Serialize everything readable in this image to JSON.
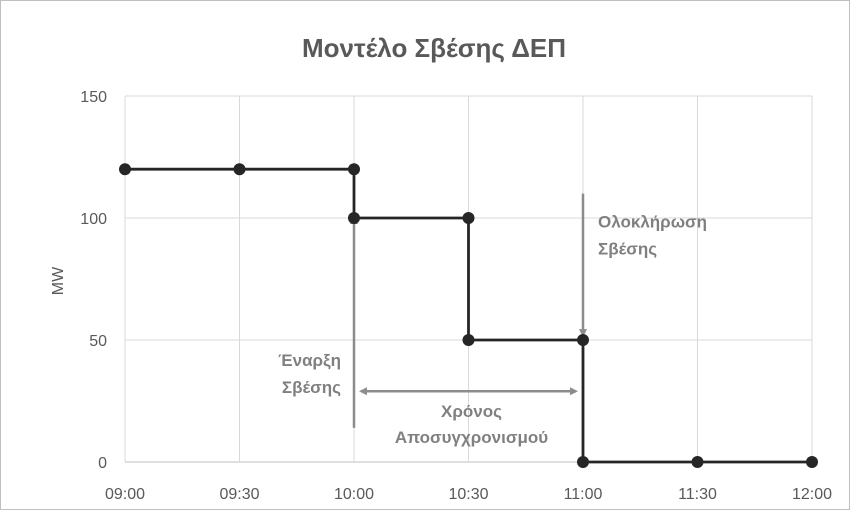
{
  "chart_data": {
    "type": "line",
    "title": "Μοντέλο Σβέσης ΔΕΠ",
    "xlabel": "",
    "ylabel": "MW",
    "x_ticks": [
      "09:00",
      "09:30",
      "10:00",
      "10:30",
      "11:00",
      "11:30",
      "12:00"
    ],
    "y_ticks": [
      "0",
      "50",
      "100",
      "150"
    ],
    "ylim": [
      0,
      150
    ],
    "xlim": [
      "09:00",
      "12:00"
    ],
    "grid": true,
    "legend": false,
    "line_style": "step",
    "series": [
      {
        "points": [
          {
            "x": "09:00",
            "y": 120
          },
          {
            "x": "09:30",
            "y": 120
          },
          {
            "x": "10:00",
            "y": 120
          },
          {
            "x": "10:00",
            "y": 100
          },
          {
            "x": "10:30",
            "y": 100
          },
          {
            "x": "10:30",
            "y": 50
          },
          {
            "x": "11:00",
            "y": 50
          },
          {
            "x": "11:00",
            "y": 0
          },
          {
            "x": "11:30",
            "y": 0
          },
          {
            "x": "12:00",
            "y": 0
          }
        ]
      }
    ],
    "annotations": [
      {
        "lines": [
          "Έναρξη",
          "Σβέσης"
        ],
        "arrow": "up",
        "x": "10:00",
        "y_from": 14,
        "y_to": 100
      },
      {
        "lines": [
          "Ολοκλήρωση",
          "Σβέσης"
        ],
        "arrow": "down",
        "x": "11:00",
        "y_from": 110,
        "y_to": 52
      },
      {
        "lines": [
          "Χρόνος",
          "Αποσυγχρονισμού"
        ],
        "arrow": "both",
        "y": 29,
        "x_from": "10:00",
        "x_to": "11:00"
      }
    ],
    "colors": {
      "line": "#262626",
      "grid": "#d9d9d9",
      "annotation": "#8c8c8c",
      "text": "#595959"
    }
  }
}
